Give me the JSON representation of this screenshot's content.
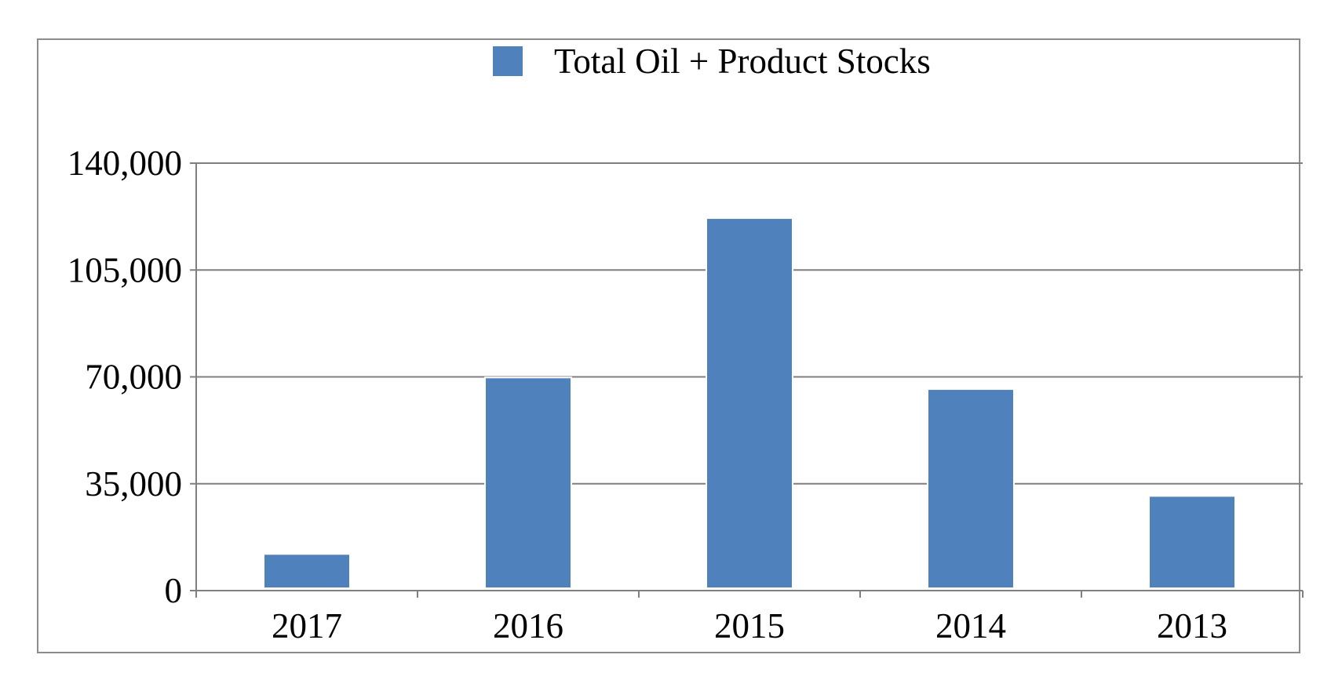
{
  "chart_data": {
    "type": "bar",
    "title": "",
    "xlabel": "",
    "ylabel": "",
    "categories": [
      "2017",
      "2016",
      "2015",
      "2014",
      "2013"
    ],
    "series": [
      {
        "name": "Total Oil + Product Stocks",
        "values": [
          12000,
          69800,
          122000,
          66000,
          31000
        ],
        "color": "#4f81bd"
      }
    ],
    "ylim": [
      0,
      140000
    ],
    "yticks": [
      0,
      35000,
      70000,
      105000,
      140000
    ],
    "ytick_labels": [
      "0",
      "35,000",
      "70,000",
      "105,000",
      "140,000"
    ],
    "grid": true,
    "legend": "top-center"
  },
  "colors": {
    "bar": "#4f81bd",
    "grid": "#7f7f7f",
    "axis": "#7f7f7f",
    "frame": "#8c8c8c"
  }
}
